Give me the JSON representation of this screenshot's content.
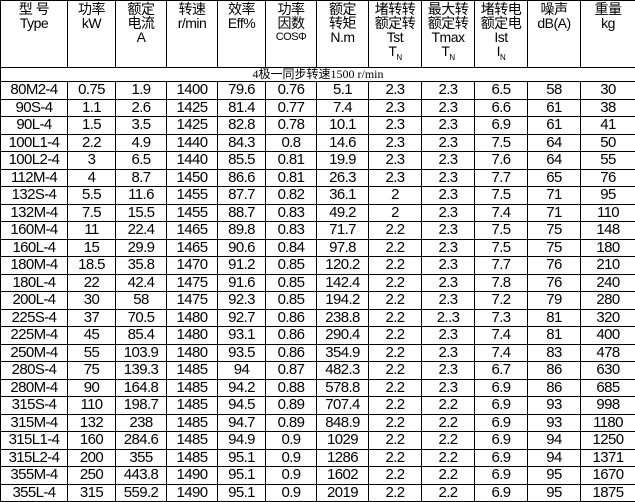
{
  "headers": [
    {
      "l1": "型 号",
      "l2": "Type",
      "l3": "",
      "l4": ""
    },
    {
      "l1": "功率",
      "l2": "kW",
      "l3": "",
      "l4": ""
    },
    {
      "l1": "额定",
      "l2": "电流",
      "l3": "A",
      "l4": ""
    },
    {
      "l1": "转速",
      "l2": "r/min",
      "l3": "",
      "l4": ""
    },
    {
      "l1": "效率",
      "l2": "Eff%",
      "l3": "",
      "l4": ""
    },
    {
      "l1": "功率",
      "l2": "因数",
      "l3": "COSΦ",
      "l4": ""
    },
    {
      "l1": "额定",
      "l2": "转矩",
      "l3": "N.m",
      "l4": ""
    },
    {
      "l1": "堵转转",
      "l2": "额定转",
      "l3": "Tst",
      "l4": "T",
      "sub": "N"
    },
    {
      "l1": "最大转",
      "l2": "额定转",
      "l3": "Tmax",
      "l4": "T",
      "sub": "N"
    },
    {
      "l1": "堵转电",
      "l2": "额定电",
      "l3": "Ist",
      "l4": "I",
      "sub": "N"
    },
    {
      "l1": "噪声",
      "l2": "dB(A)",
      "l3": "",
      "l4": ""
    },
    {
      "l1": "重量",
      "l2": "kg",
      "l3": "",
      "l4": ""
    }
  ],
  "banner": "4极一同步转速1500 r/min",
  "rows": [
    [
      "80M2-4",
      "0.75",
      "1.9",
      "1400",
      "79.6",
      "0.76",
      "5.1",
      "2.3",
      "2.3",
      "6.5",
      "58",
      "30"
    ],
    [
      "90S-4",
      "1.1",
      "2.6",
      "1425",
      "81.4",
      "0.77",
      "7.4",
      "2.3",
      "2.3",
      "6.6",
      "61",
      "38"
    ],
    [
      "90L-4",
      "1.5",
      "3.5",
      "1425",
      "82.8",
      "0.78",
      "10.1",
      "2.3",
      "2.3",
      "6.9",
      "61",
      "41"
    ],
    [
      "100L1-4",
      "2.2",
      "4.9",
      "1440",
      "84.3",
      "0.8",
      "14.6",
      "2.3",
      "2.3",
      "7.5",
      "64",
      "50"
    ],
    [
      "100L2-4",
      "3",
      "6.5",
      "1440",
      "85.5",
      "0.81",
      "19.9",
      "2.3",
      "2.3",
      "7.6",
      "64",
      "55"
    ],
    [
      "112M-4",
      "4",
      "8.7",
      "1450",
      "86.6",
      "0.81",
      "26.3",
      "2.3",
      "2.3",
      "7.7",
      "65",
      "76"
    ],
    [
      "132S-4",
      "5.5",
      "11.6",
      "1455",
      "87.7",
      "0.82",
      "36.1",
      "2",
      "2.3",
      "7.5",
      "71",
      "95"
    ],
    [
      "132M-4",
      "7.5",
      "15.5",
      "1455",
      "88.7",
      "0.83",
      "49.2",
      "2",
      "2.3",
      "7.4",
      "71",
      "110"
    ],
    [
      "160M-4",
      "11",
      "22.4",
      "1465",
      "89.8",
      "0.83",
      "71.7",
      "2.2",
      "2.3",
      "7.5",
      "75",
      "148"
    ],
    [
      "160L-4",
      "15",
      "29.9",
      "1465",
      "90.6",
      "0.84",
      "97.8",
      "2.2",
      "2.3",
      "7.5",
      "75",
      "180"
    ],
    [
      "180M-4",
      "18.5",
      "35.8",
      "1470",
      "91.2",
      "0.85",
      "120.2",
      "2.2",
      "2.3",
      "7.7",
      "76",
      "210"
    ],
    [
      "180L-4",
      "22",
      "42.4",
      "1475",
      "91.6",
      "0.85",
      "142.4",
      "2.2",
      "2.3",
      "7.8",
      "76",
      "240"
    ],
    [
      "200L-4",
      "30",
      "58",
      "1475",
      "92.3",
      "0.85",
      "194.2",
      "2.2",
      "2.3",
      "7.2",
      "79",
      "280"
    ],
    [
      "225S-4",
      "37",
      "70.5",
      "1480",
      "92.7",
      "0.86",
      "238.8",
      "2.2",
      "2..3",
      "7.3",
      "81",
      "320"
    ],
    [
      "225M-4",
      "45",
      "85.4",
      "1480",
      "93.1",
      "0.86",
      "290.4",
      "2.2",
      "2.3",
      "7.4",
      "81",
      "400"
    ],
    [
      "250M-4",
      "55",
      "103.9",
      "1480",
      "93.5",
      "0.86",
      "354.9",
      "2.2",
      "2.3",
      "7.4",
      "83",
      "478"
    ],
    [
      "280S-4",
      "75",
      "139.3",
      "1485",
      "94",
      "0.87",
      "482.3",
      "2.2",
      "2.3",
      "6.7",
      "86",
      "630"
    ],
    [
      "280M-4",
      "90",
      "164.8",
      "1485",
      "94.2",
      "0.88",
      "578.8",
      "2.2",
      "2.3",
      "6.9",
      "86",
      "685"
    ],
    [
      "315S-4",
      "110",
      "198.7",
      "1485",
      "94.5",
      "0.89",
      "707.4",
      "2.2",
      "2.2",
      "6.9",
      "93",
      "998"
    ],
    [
      "315M-4",
      "132",
      "238",
      "1485",
      "94.7",
      "0.89",
      "848.9",
      "2.2",
      "2.2",
      "6.9",
      "93",
      "1180"
    ],
    [
      "315L1-4",
      "160",
      "284.6",
      "1485",
      "94.9",
      "0.9",
      "1029",
      "2.2",
      "2.2",
      "6.9",
      "94",
      "1250"
    ],
    [
      "315L2-4",
      "200",
      "355",
      "1485",
      "95.1",
      "0.9",
      "1286",
      "2.2",
      "2.2",
      "6.9",
      "94",
      "1371"
    ],
    [
      "355M-4",
      "250",
      "443.8",
      "1490",
      "95.1",
      "0.9",
      "1602",
      "2.2",
      "2.2",
      "6.9",
      "95",
      "1670"
    ],
    [
      "355L-4",
      "315",
      "559.2",
      "1490",
      "95.1",
      "0.9",
      "2019",
      "2.2",
      "2.2",
      "6.9",
      "95",
      "1875"
    ]
  ]
}
